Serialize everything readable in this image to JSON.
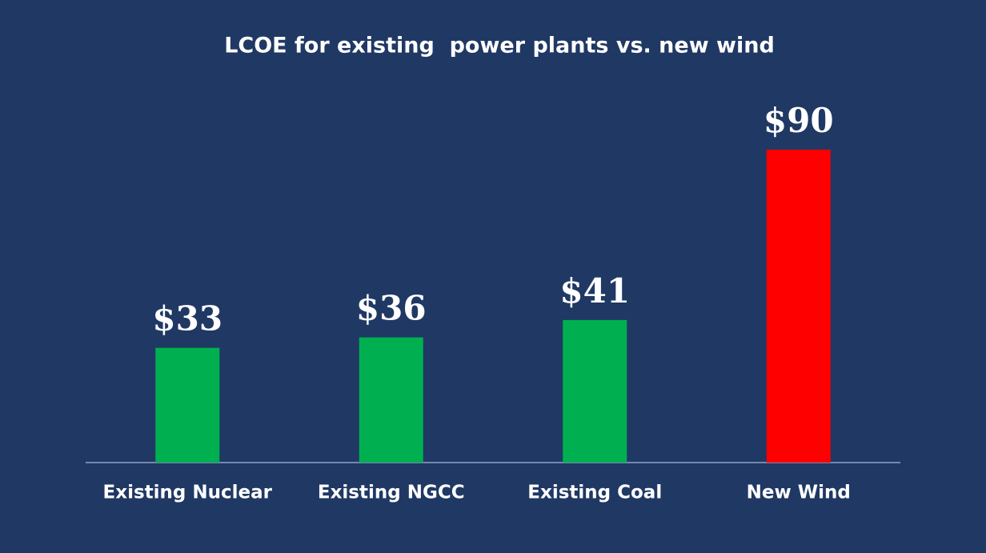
{
  "chart_data": {
    "type": "bar",
    "title": "LCOE for existing  power plants vs. new wind",
    "categories": [
      "Existing Nuclear",
      "Existing NGCC",
      "Existing Coal",
      "New Wind"
    ],
    "values": [
      33,
      36,
      41,
      90
    ],
    "value_labels": [
      "$33",
      "$36",
      "$41",
      "$90"
    ],
    "colors": [
      "#00b050",
      "#00b050",
      "#00b050",
      "#ff0000"
    ]
  }
}
